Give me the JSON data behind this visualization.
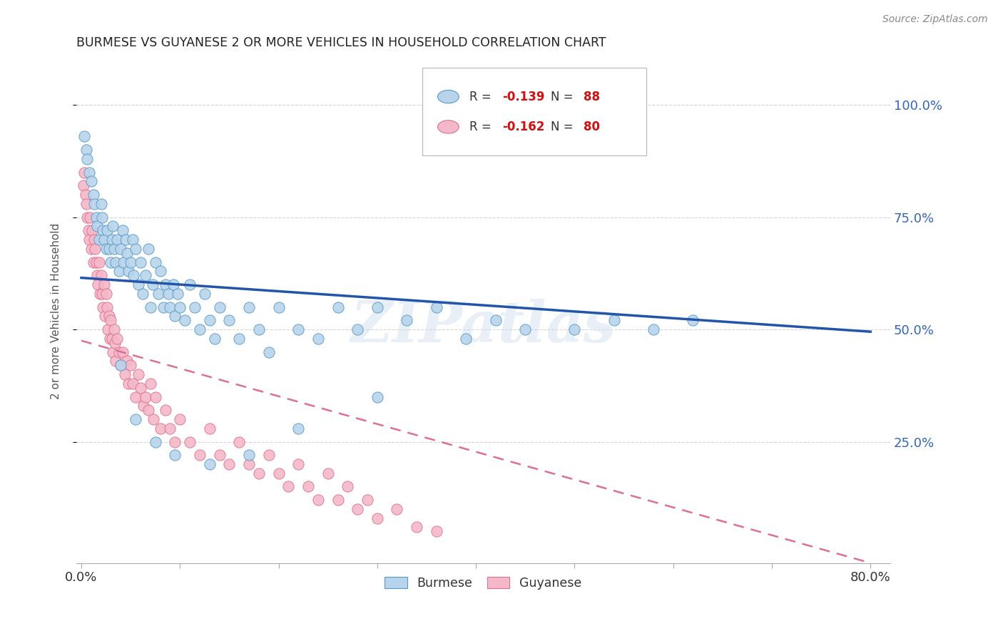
{
  "title": "BURMESE VS GUYANESE 2 OR MORE VEHICLES IN HOUSEHOLD CORRELATION CHART",
  "source": "Source: ZipAtlas.com",
  "ylabel": "2 or more Vehicles in Household",
  "ytick_labels": [
    "100.0%",
    "75.0%",
    "50.0%",
    "25.0%"
  ],
  "ytick_values": [
    1.0,
    0.75,
    0.5,
    0.25
  ],
  "xlim": [
    -0.005,
    0.82
  ],
  "ylim": [
    -0.02,
    1.1
  ],
  "legend_r1": "R = ",
  "legend_v1": "-0.139",
  "legend_n1": "N = ",
  "legend_nv1": "88",
  "legend_r2": "R = ",
  "legend_v2": "-0.162",
  "legend_n2": "N = ",
  "legend_nv2": "80",
  "burmese_color": "#b8d4ea",
  "burmese_edge": "#5599cc",
  "guyanese_color": "#f5b8c8",
  "guyanese_edge": "#dd7090",
  "burmese_line_color": "#2255aa",
  "guyanese_line_color": "#dd7090",
  "watermark": "ZIPatlas",
  "burmese_x": [
    0.003,
    0.005,
    0.006,
    0.008,
    0.01,
    0.012,
    0.013,
    0.015,
    0.016,
    0.018,
    0.02,
    0.021,
    0.022,
    0.023,
    0.025,
    0.026,
    0.028,
    0.03,
    0.031,
    0.032,
    0.033,
    0.035,
    0.036,
    0.038,
    0.04,
    0.042,
    0.043,
    0.045,
    0.046,
    0.048,
    0.05,
    0.052,
    0.053,
    0.055,
    0.058,
    0.06,
    0.062,
    0.065,
    0.068,
    0.07,
    0.072,
    0.075,
    0.078,
    0.08,
    0.083,
    0.085,
    0.088,
    0.09,
    0.093,
    0.095,
    0.098,
    0.1,
    0.105,
    0.11,
    0.115,
    0.12,
    0.125,
    0.13,
    0.135,
    0.14,
    0.15,
    0.16,
    0.17,
    0.18,
    0.19,
    0.2,
    0.22,
    0.24,
    0.26,
    0.28,
    0.3,
    0.33,
    0.36,
    0.39,
    0.42,
    0.45,
    0.5,
    0.54,
    0.58,
    0.62,
    0.3,
    0.22,
    0.17,
    0.13,
    0.095,
    0.075,
    0.055,
    0.04
  ],
  "burmese_y": [
    0.93,
    0.9,
    0.88,
    0.85,
    0.83,
    0.8,
    0.78,
    0.75,
    0.73,
    0.7,
    0.78,
    0.75,
    0.72,
    0.7,
    0.68,
    0.72,
    0.68,
    0.65,
    0.7,
    0.73,
    0.68,
    0.65,
    0.7,
    0.63,
    0.68,
    0.72,
    0.65,
    0.7,
    0.67,
    0.63,
    0.65,
    0.7,
    0.62,
    0.68,
    0.6,
    0.65,
    0.58,
    0.62,
    0.68,
    0.55,
    0.6,
    0.65,
    0.58,
    0.63,
    0.55,
    0.6,
    0.58,
    0.55,
    0.6,
    0.53,
    0.58,
    0.55,
    0.52,
    0.6,
    0.55,
    0.5,
    0.58,
    0.52,
    0.48,
    0.55,
    0.52,
    0.48,
    0.55,
    0.5,
    0.45,
    0.55,
    0.5,
    0.48,
    0.55,
    0.5,
    0.55,
    0.52,
    0.55,
    0.48,
    0.52,
    0.5,
    0.5,
    0.52,
    0.5,
    0.52,
    0.35,
    0.28,
    0.22,
    0.2,
    0.22,
    0.25,
    0.3,
    0.42
  ],
  "guyanese_x": [
    0.002,
    0.003,
    0.004,
    0.005,
    0.006,
    0.007,
    0.008,
    0.009,
    0.01,
    0.011,
    0.012,
    0.013,
    0.014,
    0.015,
    0.016,
    0.017,
    0.018,
    0.019,
    0.02,
    0.021,
    0.022,
    0.023,
    0.024,
    0.025,
    0.026,
    0.027,
    0.028,
    0.029,
    0.03,
    0.031,
    0.032,
    0.033,
    0.034,
    0.035,
    0.036,
    0.038,
    0.04,
    0.042,
    0.044,
    0.046,
    0.048,
    0.05,
    0.052,
    0.055,
    0.058,
    0.06,
    0.063,
    0.065,
    0.068,
    0.07,
    0.073,
    0.075,
    0.08,
    0.085,
    0.09,
    0.095,
    0.1,
    0.11,
    0.12,
    0.13,
    0.14,
    0.15,
    0.16,
    0.17,
    0.18,
    0.19,
    0.2,
    0.21,
    0.22,
    0.23,
    0.24,
    0.25,
    0.26,
    0.27,
    0.28,
    0.29,
    0.3,
    0.32,
    0.34,
    0.36
  ],
  "guyanese_y": [
    0.82,
    0.85,
    0.8,
    0.78,
    0.75,
    0.72,
    0.7,
    0.75,
    0.68,
    0.72,
    0.65,
    0.7,
    0.68,
    0.65,
    0.62,
    0.6,
    0.65,
    0.58,
    0.62,
    0.58,
    0.55,
    0.6,
    0.53,
    0.58,
    0.55,
    0.5,
    0.53,
    0.48,
    0.52,
    0.48,
    0.45,
    0.5,
    0.47,
    0.43,
    0.48,
    0.45,
    0.42,
    0.45,
    0.4,
    0.43,
    0.38,
    0.42,
    0.38,
    0.35,
    0.4,
    0.37,
    0.33,
    0.35,
    0.32,
    0.38,
    0.3,
    0.35,
    0.28,
    0.32,
    0.28,
    0.25,
    0.3,
    0.25,
    0.22,
    0.28,
    0.22,
    0.2,
    0.25,
    0.2,
    0.18,
    0.22,
    0.18,
    0.15,
    0.2,
    0.15,
    0.12,
    0.18,
    0.12,
    0.15,
    0.1,
    0.12,
    0.08,
    0.1,
    0.06,
    0.05
  ],
  "burmese_trend_x": [
    0.0,
    0.8
  ],
  "burmese_trend_y": [
    0.615,
    0.495
  ],
  "guyanese_trend_x": [
    0.0,
    0.8
  ],
  "guyanese_trend_y": [
    0.475,
    -0.02
  ],
  "background_color": "#ffffff",
  "grid_color": "#cccccc",
  "title_color": "#222222",
  "right_tick_color": "#3366bb"
}
